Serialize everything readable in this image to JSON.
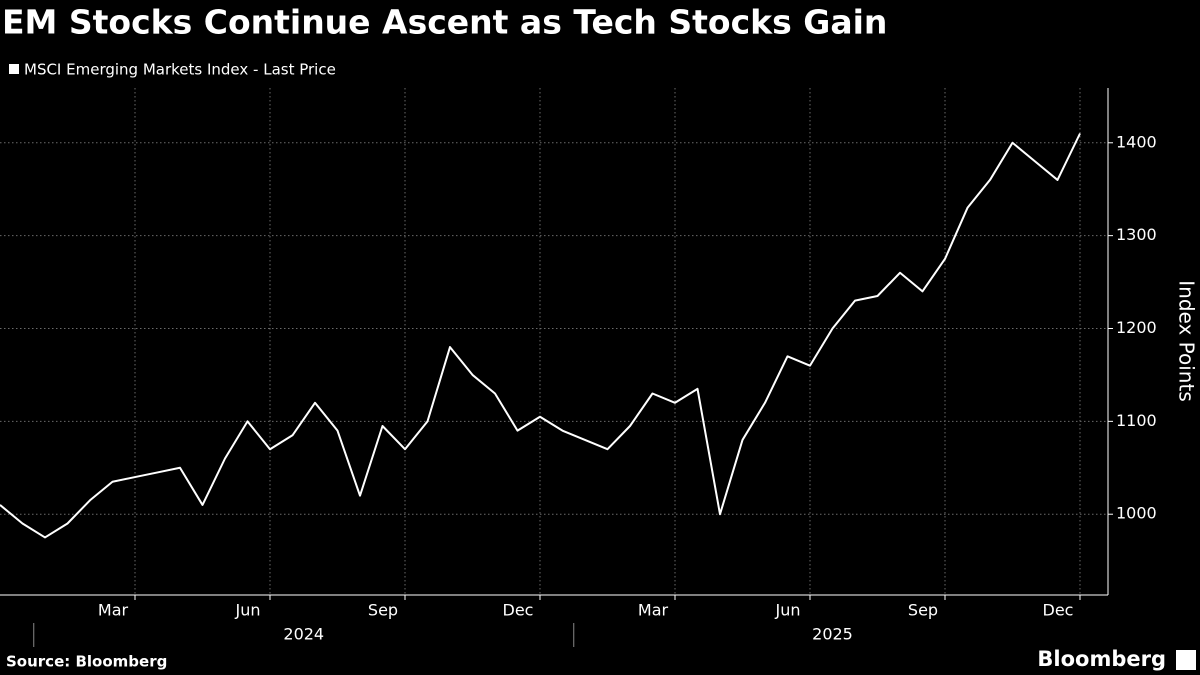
{
  "chart_data": {
    "type": "line",
    "title": "EM Stocks Continue Ascent as Tech Stocks Gain",
    "y_label": "Index Points",
    "source": "Source: Bloomberg",
    "brand": "Bloomberg",
    "x": [
      "2023-12",
      "2023-12",
      "2024-01",
      "2024-01",
      "2024-02",
      "2024-02",
      "2024-03",
      "2024-03",
      "2024-04",
      "2024-04",
      "2024-05",
      "2024-05",
      "2024-06",
      "2024-06",
      "2024-07",
      "2024-07",
      "2024-08",
      "2024-08",
      "2024-09",
      "2024-09",
      "2024-10",
      "2024-10",
      "2024-11",
      "2024-11",
      "2024-12",
      "2024-12",
      "2025-01",
      "2025-01",
      "2025-02",
      "2025-02",
      "2025-03",
      "2025-03",
      "2025-04",
      "2025-04",
      "2025-05",
      "2025-05",
      "2025-06",
      "2025-06",
      "2025-07",
      "2025-07",
      "2025-08",
      "2025-08",
      "2025-09",
      "2025-09",
      "2025-10",
      "2025-10",
      "2025-11",
      "2025-11",
      "2025-12"
    ],
    "series": [
      {
        "name": "MSCI Emerging Markets Index - Last Price",
        "color": "#ffffff",
        "values": [
          1010,
          990,
          975,
          990,
          1015,
          1035,
          1040,
          1045,
          1050,
          1010,
          1060,
          1100,
          1070,
          1085,
          1120,
          1090,
          1020,
          1095,
          1070,
          1100,
          1180,
          1150,
          1130,
          1090,
          1105,
          1090,
          1080,
          1070,
          1095,
          1130,
          1120,
          1135,
          1000,
          1080,
          1120,
          1170,
          1160,
          1200,
          1230,
          1235,
          1260,
          1240,
          1275,
          1330,
          1360,
          1400,
          1380,
          1360,
          1410
        ]
      }
    ],
    "xticks": [
      {
        "value": "2024-03",
        "label": "Mar"
      },
      {
        "value": "2024-06",
        "label": "Jun"
      },
      {
        "value": "2024-09",
        "label": "Sep"
      },
      {
        "value": "2024-12",
        "label": "Dec"
      },
      {
        "value": "2025-03",
        "label": "Mar"
      },
      {
        "value": "2025-06",
        "label": "Jun"
      },
      {
        "value": "2025-09",
        "label": "Sep"
      },
      {
        "value": "2025-12",
        "label": "Dec"
      }
    ],
    "years": [
      "2024",
      "2025"
    ],
    "ylim": [
      913,
      1459
    ],
    "yticks": [
      1000,
      1100,
      1200,
      1300,
      1400
    ],
    "grid": true
  }
}
